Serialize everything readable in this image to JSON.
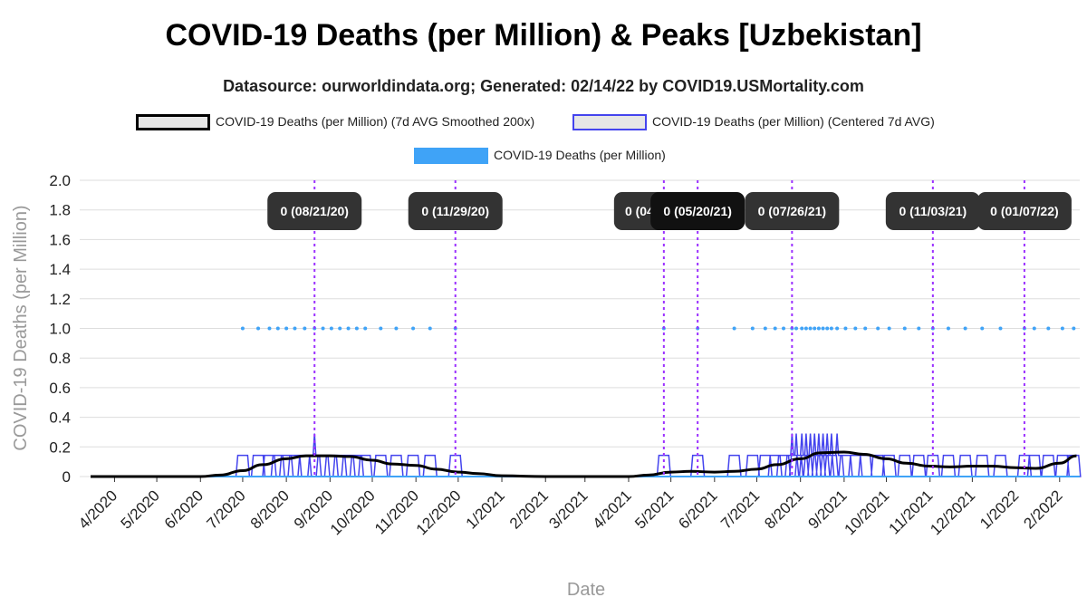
{
  "chart_data": {
    "type": "line",
    "title": "COVID-19 Deaths (per Million) & Peaks [Uzbekistan]",
    "subtitle": "Datasource: ourworldindata.org; Generated: 02/14/22 by COVID19.USMortality.com",
    "xlabel": "Date",
    "ylabel": "COVID-19 Deaths (per Million)",
    "ylim": [
      0,
      2.0
    ],
    "y_ticks": [
      "2.0",
      "1.8",
      "1.6",
      "1.4",
      "1.2",
      "1.0",
      "0.8",
      "0.6",
      "0.4",
      "0.2",
      "0"
    ],
    "x_ticks": [
      "4/2020",
      "5/2020",
      "6/2020",
      "7/2020",
      "8/2020",
      "9/2020",
      "10/2020",
      "11/2020",
      "12/2020",
      "1/2021",
      "2/2021",
      "3/2021",
      "4/2021",
      "5/2021",
      "6/2021",
      "7/2021",
      "8/2021",
      "9/2021",
      "10/2021",
      "11/2021",
      "12/2021",
      "1/2022",
      "2/2022"
    ],
    "grid": true,
    "legend": [
      {
        "label": "COVID-19 Deaths (per Million) (7d AVG Smoothed 200x)",
        "color": "#000000"
      },
      {
        "label": "COVID-19 Deaths (per Million) (Centered 7d AVG)",
        "color": "#4444ee"
      },
      {
        "label": "COVID-19 Deaths (per Million)",
        "color": "#3fa3f7"
      }
    ],
    "series": [
      {
        "name": "COVID-19 Deaths (per Million)",
        "kind": "points_at_1",
        "dates": [
          "2020-07-01",
          "2020-07-12",
          "2020-07-20",
          "2020-07-26",
          "2020-08-01",
          "2020-08-07",
          "2020-08-14",
          "2020-08-21",
          "2020-08-27",
          "2020-09-02",
          "2020-09-08",
          "2020-09-14",
          "2020-09-20",
          "2020-09-26",
          "2020-10-07",
          "2020-10-18",
          "2020-10-30",
          "2020-11-11",
          "2020-11-29",
          "2021-04-26",
          "2021-05-20",
          "2021-06-15",
          "2021-06-28",
          "2021-07-07",
          "2021-07-14",
          "2021-07-20",
          "2021-07-26",
          "2021-07-29",
          "2021-08-02",
          "2021-08-05",
          "2021-08-08",
          "2021-08-11",
          "2021-08-14",
          "2021-08-17",
          "2021-08-20",
          "2021-08-23",
          "2021-08-27",
          "2021-09-02",
          "2021-09-09",
          "2021-09-16",
          "2021-09-25",
          "2021-10-03",
          "2021-10-14",
          "2021-10-24",
          "2021-11-03",
          "2021-11-14",
          "2021-11-26",
          "2021-12-08",
          "2021-12-21",
          "2022-01-07",
          "2022-01-14",
          "2022-01-24",
          "2022-02-03",
          "2022-02-11"
        ]
      },
      {
        "name": "COVID-19 Deaths (per Million) (Centered 7d AVG)",
        "kind": "centered_7d_avg",
        "note_value": 0.143,
        "spike_dates": [
          "2020-08-21",
          "2020-09-28",
          "2021-07-26",
          "2021-07-29",
          "2021-08-02",
          "2021-08-05",
          "2021-08-08",
          "2021-08-11",
          "2021-08-14",
          "2021-08-17",
          "2021-08-20",
          "2021-08-23",
          "2021-08-27"
        ],
        "spike_values": [
          0.29,
          0.29,
          0.29,
          0.29,
          0.29,
          0.29,
          0.29,
          0.29,
          0.29,
          0.29,
          0.29,
          0.29,
          0.29
        ]
      },
      {
        "name": "COVID-19 Deaths (per Million) (7d AVG Smoothed 200x)",
        "kind": "smoothed",
        "x": [
          "2020-03-15",
          "2020-06-01",
          "2020-06-15",
          "2020-07-01",
          "2020-07-15",
          "2020-08-01",
          "2020-08-15",
          "2020-09-01",
          "2020-09-15",
          "2020-10-01",
          "2020-10-15",
          "2020-11-01",
          "2020-11-15",
          "2020-12-01",
          "2020-12-15",
          "2021-01-01",
          "2021-02-01",
          "2021-03-01",
          "2021-04-01",
          "2021-04-15",
          "2021-05-01",
          "2021-05-15",
          "2021-06-01",
          "2021-06-15",
          "2021-07-01",
          "2021-07-15",
          "2021-08-01",
          "2021-08-15",
          "2021-09-01",
          "2021-09-15",
          "2021-10-01",
          "2021-10-15",
          "2021-11-01",
          "2021-11-15",
          "2021-12-01",
          "2021-12-15",
          "2022-01-01",
          "2022-01-15",
          "2022-02-01",
          "2022-02-13"
        ],
        "y": [
          0,
          0,
          0.01,
          0.04,
          0.08,
          0.12,
          0.14,
          0.14,
          0.135,
          0.11,
          0.085,
          0.075,
          0.05,
          0.03,
          0.02,
          0.005,
          0,
          0,
          0,
          0.01,
          0.03,
          0.035,
          0.03,
          0.035,
          0.05,
          0.08,
          0.12,
          0.16,
          0.165,
          0.15,
          0.12,
          0.09,
          0.07,
          0.065,
          0.07,
          0.07,
          0.06,
          0.055,
          0.09,
          0.14
        ]
      }
    ],
    "peaks": [
      {
        "label": "0 (08/21/20)",
        "date": "2020-08-21"
      },
      {
        "label": "0 (11/29/20)",
        "date": "2020-11-29"
      },
      {
        "label": "0 (04/",
        "date": "2021-04-26"
      },
      {
        "label": "0 (05/20/21)",
        "date": "2021-05-20"
      },
      {
        "label": "0 (07/26/21)",
        "date": "2021-07-26"
      },
      {
        "label": "0 (11/03/21)",
        "date": "2021-11-03"
      },
      {
        "label": "0 (01/07/22)",
        "date": "2022-01-07"
      }
    ]
  }
}
